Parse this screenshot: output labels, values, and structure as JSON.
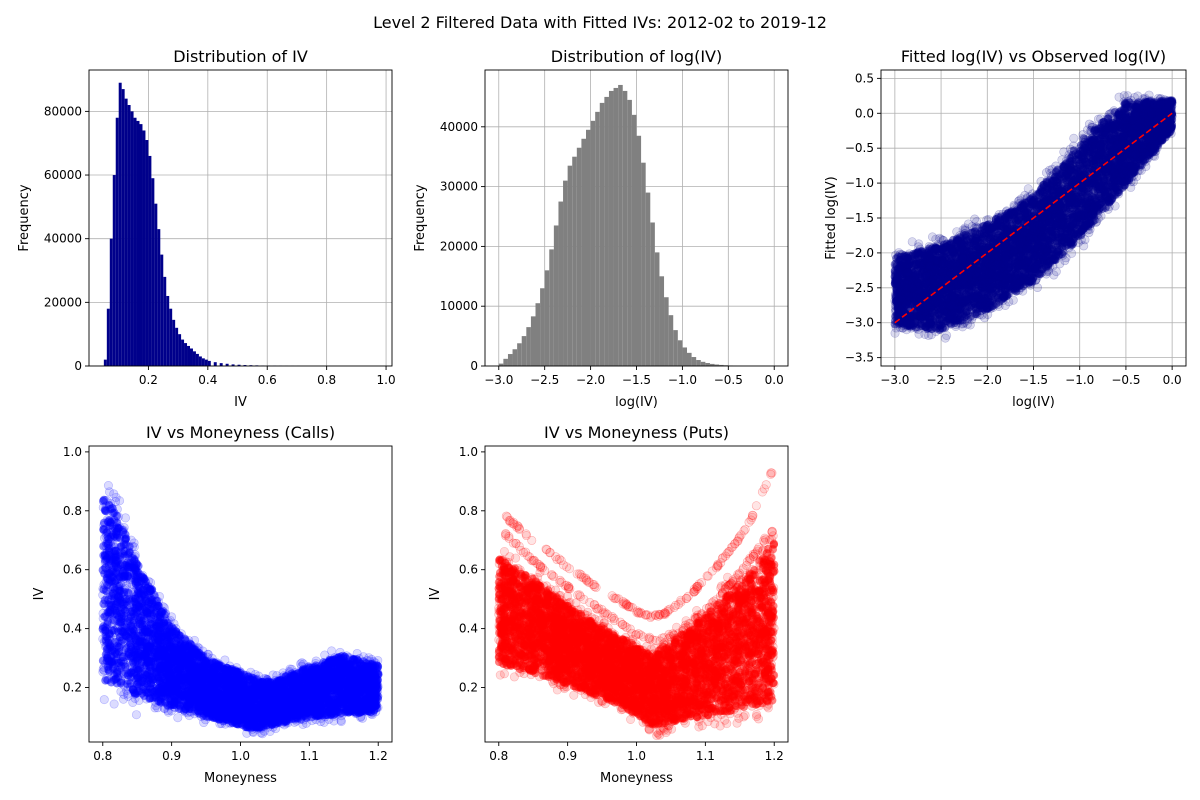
{
  "figure": {
    "title": "Level 2 Filtered Data with Fitted IVs: 2012-02 to 2019-12"
  },
  "chart_data": [
    {
      "id": "iv-hist",
      "type": "bar",
      "title": "Distribution of IV",
      "xlabel": "IV",
      "ylabel": "Frequency",
      "xlim": [
        0.0,
        1.02
      ],
      "ylim": [
        0,
        93000
      ],
      "xticks": [
        0.2,
        0.4,
        0.6,
        0.8,
        1.0
      ],
      "xtick_labels": [
        "0.2",
        "0.4",
        "0.6",
        "0.8",
        "1.0"
      ],
      "yticks": [
        0,
        20000,
        40000,
        60000,
        80000
      ],
      "ytick_labels": [
        "0",
        "20000",
        "40000",
        "60000",
        "80000"
      ],
      "grid": true,
      "color": "#00008b",
      "bin_width": 0.01,
      "x": [
        0.05,
        0.06,
        0.07,
        0.08,
        0.09,
        0.1,
        0.11,
        0.12,
        0.13,
        0.14,
        0.15,
        0.16,
        0.17,
        0.18,
        0.19,
        0.2,
        0.21,
        0.22,
        0.23,
        0.24,
        0.25,
        0.26,
        0.27,
        0.28,
        0.29,
        0.3,
        0.31,
        0.32,
        0.33,
        0.34,
        0.35,
        0.36,
        0.37,
        0.38,
        0.39,
        0.4,
        0.42,
        0.44,
        0.46,
        0.48,
        0.5,
        0.52,
        0.54,
        0.56,
        0.58,
        0.6,
        0.62,
        0.64,
        0.66,
        0.68,
        0.7
      ],
      "values": [
        2000,
        18000,
        40000,
        60000,
        78000,
        89000,
        87000,
        84000,
        82000,
        80000,
        78000,
        77000,
        76000,
        74000,
        71000,
        66000,
        59000,
        51000,
        43000,
        35000,
        28000,
        22000,
        18000,
        14500,
        12000,
        10000,
        8300,
        7200,
        6300,
        5500,
        4600,
        3800,
        3000,
        2400,
        2000,
        1600,
        1200,
        900,
        700,
        500,
        400,
        300,
        250,
        200,
        150,
        120,
        100,
        80,
        60,
        50,
        40
      ]
    },
    {
      "id": "logiv-hist",
      "type": "bar",
      "title": "Distribution of log(IV)",
      "xlabel": "log(IV)",
      "ylabel": "Frequency",
      "xlim": [
        -3.15,
        0.15
      ],
      "ylim": [
        0,
        49500
      ],
      "xticks": [
        -3.0,
        -2.5,
        -2.0,
        -1.5,
        -1.0,
        -0.5,
        0.0
      ],
      "xtick_labels": [
        "−3.0",
        "−2.5",
        "−2.0",
        "−1.5",
        "−1.0",
        "−0.5",
        "0.0"
      ],
      "yticks": [
        0,
        10000,
        20000,
        30000,
        40000
      ],
      "ytick_labels": [
        "0",
        "10000",
        "20000",
        "30000",
        "40000"
      ],
      "grid": true,
      "color": "#808080",
      "bin_width": 0.05,
      "x": [
        -3.0,
        -2.95,
        -2.9,
        -2.85,
        -2.8,
        -2.75,
        -2.7,
        -2.65,
        -2.6,
        -2.55,
        -2.5,
        -2.45,
        -2.4,
        -2.35,
        -2.3,
        -2.25,
        -2.2,
        -2.15,
        -2.1,
        -2.05,
        -2.0,
        -1.95,
        -1.9,
        -1.85,
        -1.8,
        -1.75,
        -1.7,
        -1.65,
        -1.6,
        -1.55,
        -1.5,
        -1.45,
        -1.4,
        -1.35,
        -1.3,
        -1.25,
        -1.2,
        -1.15,
        -1.1,
        -1.05,
        -1.0,
        -0.95,
        -0.9,
        -0.85,
        -0.8,
        -0.75,
        -0.7,
        -0.65,
        -0.6,
        -0.55,
        -0.5,
        -0.45,
        -0.4,
        -0.35,
        -0.3,
        -0.25,
        -0.2,
        -0.15,
        -0.1,
        -0.05
      ],
      "values": [
        400,
        1200,
        2000,
        2800,
        3800,
        5000,
        6500,
        8300,
        10500,
        13000,
        16000,
        19500,
        23500,
        27500,
        31000,
        33500,
        35000,
        36500,
        38000,
        39500,
        41000,
        42500,
        44000,
        45000,
        46000,
        46500,
        47000,
        46000,
        44500,
        42000,
        38500,
        34000,
        29000,
        24000,
        19000,
        15000,
        11500,
        8500,
        6000,
        4300,
        3100,
        2200,
        1500,
        1000,
        700,
        500,
        350,
        250,
        180,
        130,
        90,
        70,
        50,
        40,
        30,
        25,
        20,
        15,
        10,
        5
      ]
    },
    {
      "id": "fitted-scatter",
      "type": "scatter",
      "title": "Fitted log(IV) vs  Observed log(IV)",
      "xlabel": "log(IV)",
      "ylabel": "Fitted log(IV)",
      "xlim": [
        -3.15,
        0.15
      ],
      "ylim": [
        -3.62,
        0.62
      ],
      "xticks": [
        -3.0,
        -2.5,
        -2.0,
        -1.5,
        -1.0,
        -0.5,
        0.0
      ],
      "xtick_labels": [
        "−3.0",
        "−2.5",
        "−2.0",
        "−1.5",
        "−1.0",
        "−0.5",
        "0.0"
      ],
      "yticks": [
        -3.5,
        -3.0,
        -2.5,
        -2.0,
        -1.5,
        -1.0,
        -0.5,
        0.0,
        0.5
      ],
      "ytick_labels": [
        "−3.5",
        "−3.0",
        "−2.5",
        "−2.0",
        "−1.5",
        "−1.0",
        "−0.5",
        "0.0",
        "0.5"
      ],
      "grid": true,
      "color": "#00008b",
      "band": {
        "x": [
          -3.0,
          -2.5,
          -2.0,
          -1.5,
          -1.0,
          -0.5,
          0.0
        ],
        "upper": [
          -1.9,
          -1.7,
          -1.4,
          -1.0,
          -0.2,
          0.35,
          0.25
        ],
        "lower": [
          -3.2,
          -3.3,
          -3.0,
          -2.6,
          -2.0,
          -1.2,
          -0.3
        ]
      },
      "reference_line": {
        "x": [
          -3.0,
          0.0
        ],
        "y": [
          -3.0,
          0.0
        ],
        "color": "#ff0000",
        "style": "dashed"
      }
    },
    {
      "id": "calls-scatter",
      "type": "scatter",
      "title": "IV vs Moneyness (Calls)",
      "xlabel": "Moneyness",
      "ylabel": "IV",
      "xlim": [
        0.78,
        1.22
      ],
      "ylim": [
        0.015,
        1.02
      ],
      "xticks": [
        0.8,
        0.9,
        1.0,
        1.1,
        1.2
      ],
      "xtick_labels": [
        "0.8",
        "0.9",
        "1.0",
        "1.1",
        "1.2"
      ],
      "yticks": [
        0.2,
        0.4,
        0.6,
        0.8,
        1.0
      ],
      "ytick_labels": [
        "0.2",
        "0.4",
        "0.6",
        "0.8",
        "1.0"
      ],
      "grid": false,
      "color": "#0000ff",
      "band": {
        "x": [
          0.8,
          0.82,
          0.85,
          0.9,
          0.95,
          1.0,
          1.02,
          1.05,
          1.08,
          1.1,
          1.15,
          1.2
        ],
        "upper": [
          0.95,
          0.9,
          0.7,
          0.45,
          0.33,
          0.28,
          0.26,
          0.25,
          0.28,
          0.3,
          0.34,
          0.3
        ],
        "lower": [
          0.12,
          0.11,
          0.1,
          0.09,
          0.07,
          0.04,
          0.03,
          0.05,
          0.06,
          0.07,
          0.08,
          0.09
        ]
      }
    },
    {
      "id": "puts-scatter",
      "type": "scatter",
      "title": "IV vs Moneyness (Puts)",
      "xlabel": "Moneyness",
      "ylabel": "IV",
      "xlim": [
        0.78,
        1.22
      ],
      "ylim": [
        0.015,
        1.02
      ],
      "xticks": [
        0.8,
        0.9,
        1.0,
        1.1,
        1.2
      ],
      "xtick_labels": [
        "0.8",
        "0.9",
        "1.0",
        "1.1",
        "1.2"
      ],
      "yticks": [
        0.2,
        0.4,
        0.6,
        0.8,
        1.0
      ],
      "ytick_labels": [
        "0.2",
        "0.4",
        "0.6",
        "0.8",
        "1.0"
      ],
      "grid": false,
      "color": "#ff0000",
      "band": {
        "x": [
          0.8,
          0.85,
          0.9,
          0.95,
          1.0,
          1.02,
          1.05,
          1.1,
          1.15,
          1.2
        ],
        "upper": [
          0.7,
          0.62,
          0.52,
          0.44,
          0.38,
          0.35,
          0.4,
          0.5,
          0.62,
          0.78
        ],
        "lower": [
          0.22,
          0.2,
          0.17,
          0.13,
          0.07,
          0.03,
          0.04,
          0.05,
          0.06,
          0.07
        ]
      },
      "arcs": [
        {
          "x": [
            0.81,
            0.85,
            0.9,
            0.95,
            1.0,
            1.02,
            1.04,
            1.08,
            1.12,
            1.16,
            1.2
          ],
          "y": [
            0.78,
            0.7,
            0.61,
            0.53,
            0.46,
            0.44,
            0.45,
            0.52,
            0.62,
            0.74,
            0.95
          ]
        },
        {
          "x": [
            0.81,
            0.85,
            0.9,
            0.95,
            1.0,
            1.03,
            1.06,
            1.1,
            1.14,
            1.18,
            1.2
          ],
          "y": [
            0.72,
            0.63,
            0.54,
            0.46,
            0.38,
            0.36,
            0.38,
            0.46,
            0.56,
            0.68,
            0.74
          ]
        }
      ]
    }
  ]
}
